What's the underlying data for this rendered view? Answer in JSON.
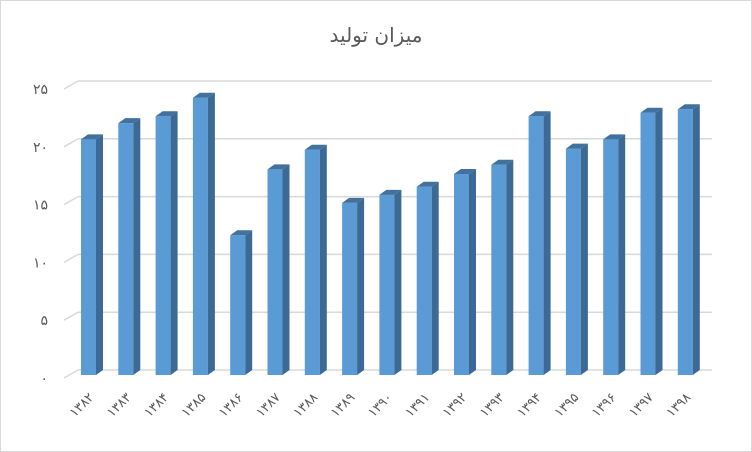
{
  "chart_data": {
    "type": "bar",
    "title": "میزان تولید",
    "xlabel": "",
    "ylabel": "",
    "categories": [
      "۱۳۸۲",
      "۱۳۸۳",
      "۱۳۸۴",
      "۱۳۸۵",
      "۱۳۸۶",
      "۱۳۸۷",
      "۱۳۸۸",
      "۱۳۸۹",
      "۱۳۹۰",
      "۱۳۹۱",
      "۱۳۹۲",
      "۱۳۹۳",
      "۱۳۹۴",
      "۱۳۹۵",
      "۱۳۹۶",
      "۱۳۹۷",
      "۱۳۹۸"
    ],
    "values": [
      20.3,
      21.7,
      22.3,
      23.9,
      12.0,
      17.7,
      19.4,
      14.8,
      15.5,
      16.2,
      17.3,
      18.1,
      22.3,
      19.5,
      20.3,
      22.6,
      22.9
    ],
    "ylim": [
      0,
      25
    ],
    "yticks": [
      0,
      5,
      10,
      15,
      20,
      25
    ],
    "ytick_labels": [
      "۰",
      "۵",
      "۱۰",
      "۱۵",
      "۲۰",
      "۲۵"
    ],
    "grid": true,
    "style": "3d-column",
    "colors": {
      "front": "#5b9bd5",
      "side": "#3d6a94",
      "top": "#41719c",
      "grid": "#d9d9d9"
    }
  }
}
